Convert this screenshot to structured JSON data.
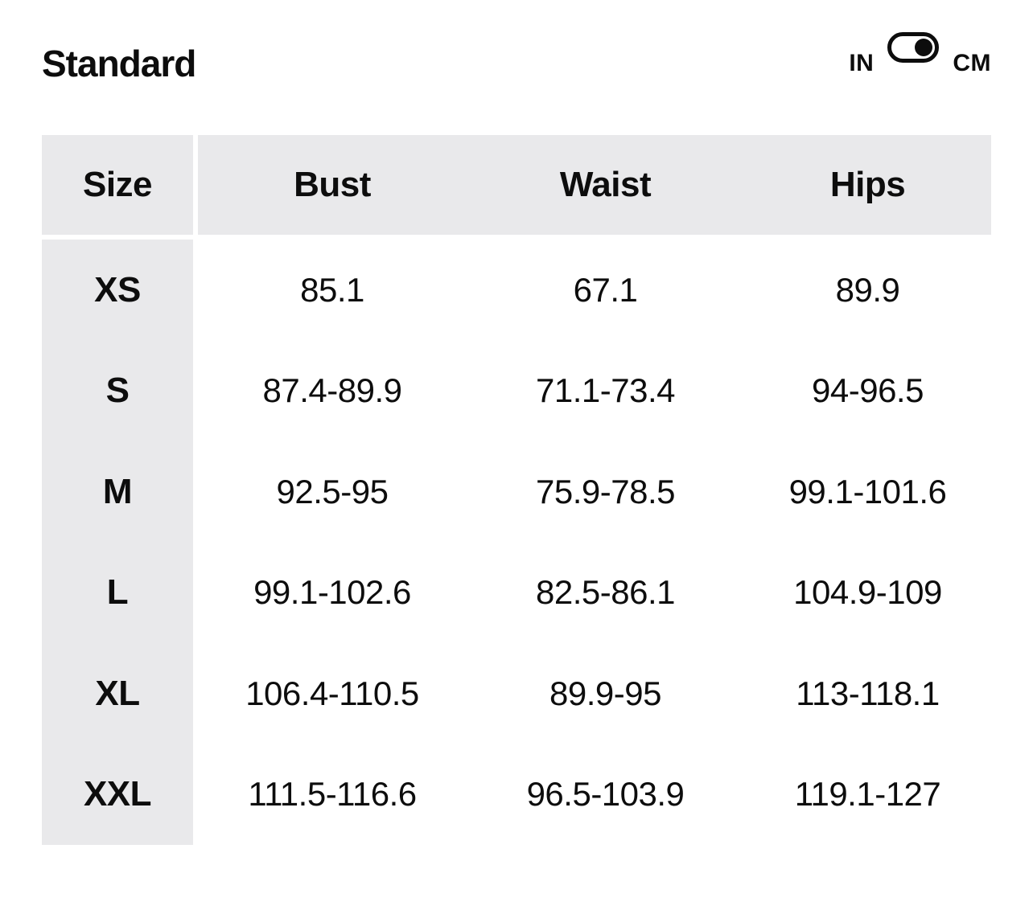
{
  "header": {
    "title": "Standard",
    "unit_toggle": {
      "left_label": "IN",
      "right_label": "CM",
      "selected_unit": "CM"
    }
  },
  "table": {
    "columns": [
      "Size",
      "Bust",
      "Waist",
      "Hips"
    ],
    "rows": [
      {
        "size": "XS",
        "bust": "85.1",
        "waist": "67.1",
        "hips": "89.9"
      },
      {
        "size": "S",
        "bust": "87.4-89.9",
        "waist": "71.1-73.4",
        "hips": "94-96.5"
      },
      {
        "size": "M",
        "bust": "92.5-95",
        "waist": "75.9-78.5",
        "hips": "99.1-101.6"
      },
      {
        "size": "L",
        "bust": "99.1-102.6",
        "waist": "82.5-86.1",
        "hips": "104.9-109"
      },
      {
        "size": "XL",
        "bust": "106.4-110.5",
        "waist": "89.9-95",
        "hips": "113-118.1"
      },
      {
        "size": "XXL",
        "bust": "111.5-116.6",
        "waist": "96.5-103.9",
        "hips": "119.1-127"
      }
    ]
  },
  "colors": {
    "cell_background": "#e9e9eb",
    "text": "#0d0d0d",
    "page_background": "#ffffff",
    "toggle_border": "#0d0d0d",
    "toggle_knob": "#0d0d0d"
  }
}
